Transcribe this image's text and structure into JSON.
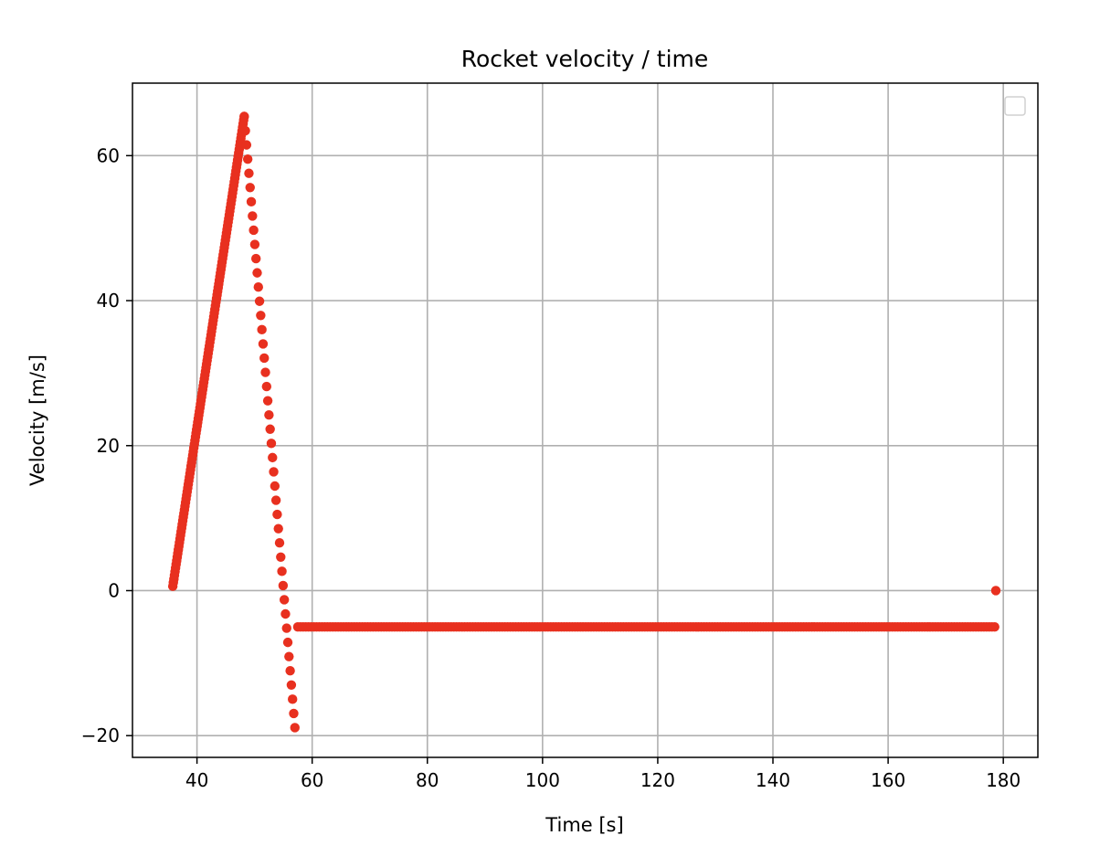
{
  "chart_data": {
    "type": "scatter",
    "title": "Rocket velocity / time",
    "xlabel": "Time [s]",
    "ylabel": "Velocity [m/s]",
    "xlim": [
      28.8,
      186
    ],
    "ylim": [
      -23,
      70
    ],
    "xticks": [
      40,
      60,
      80,
      100,
      120,
      140,
      160,
      180
    ],
    "yticks": [
      -20,
      0,
      20,
      40,
      60
    ],
    "grid": true,
    "legend": "upper-right, empty",
    "marker_color": "#e8301f",
    "segments": [
      {
        "x0": 35.8,
        "y0": 0.6,
        "x1": 48.2,
        "y1": 65.4,
        "count": 130
      },
      {
        "x0": 48.2,
        "y0": 65.4,
        "x1": 57.0,
        "y1": -18.9,
        "count": 44
      },
      {
        "x0": 57.5,
        "y0": -5.0,
        "x1": 178.5,
        "y1": -5.0,
        "count": 260
      }
    ],
    "points": [
      {
        "x": 178.7,
        "y": 0.0
      }
    ]
  }
}
